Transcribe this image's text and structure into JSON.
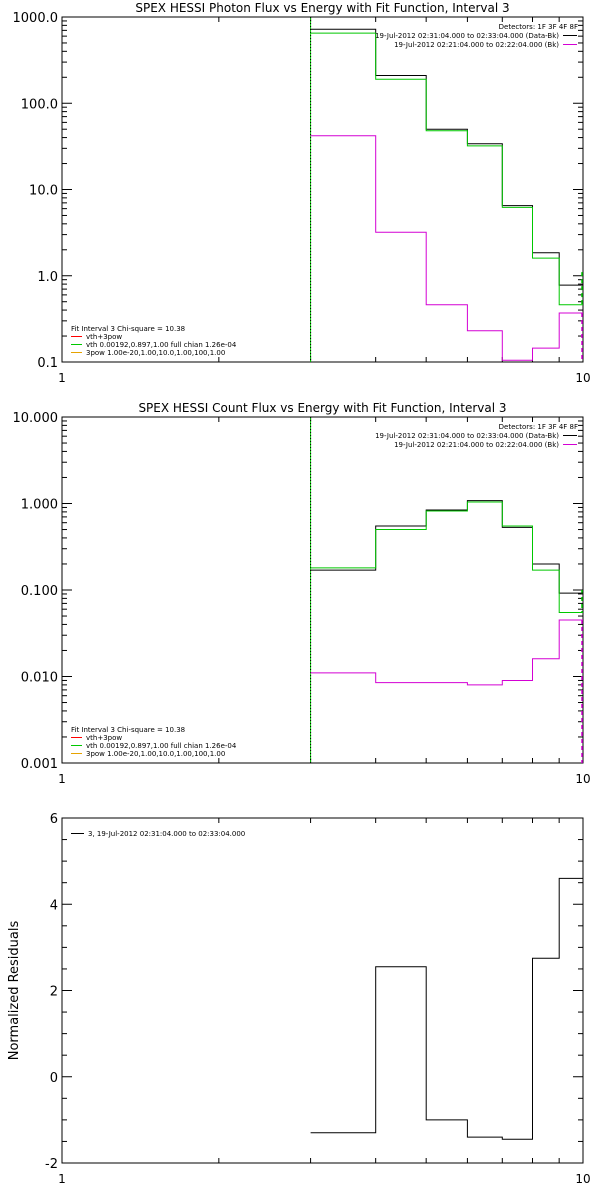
{
  "chart_data": [
    {
      "type": "line",
      "title": "SPEX HESSI Photon Flux vs Energy with Fit Function, Interval 3",
      "xlabel": "",
      "ylabel": "",
      "xscale": "log",
      "yscale": "log",
      "xlim": [
        1,
        10
      ],
      "ylim": [
        0.1,
        1000
      ],
      "xticks": [
        {
          "v": 1,
          "label": "1"
        },
        {
          "v": 10,
          "label": "10"
        }
      ],
      "yticks": [
        {
          "v": 0.1,
          "label": "0.1"
        },
        {
          "v": 1,
          "label": "1.0"
        },
        {
          "v": 10,
          "label": "10.0"
        },
        {
          "v": 100,
          "label": "100.0"
        },
        {
          "v": 1000,
          "label": "1000.0"
        }
      ],
      "vline": {
        "x": 3,
        "color": "#00c800",
        "dashed_color": "#000000"
      },
      "legend_top": {
        "header": "Detectors: 1F 3F 4F 8F",
        "entries": [
          {
            "label": "19-Jul-2012 02:31:04.000 to 02:33:04.000 (Data-Bk)",
            "color": "#000000"
          },
          {
            "label": "19-Jul-2012 02:21:04.000 to 02:22:04.000 (Bk)",
            "color": "#d400d4"
          }
        ]
      },
      "legend_bottom": {
        "header": "Fit Interval 3   Chi-square = 10.38",
        "entries": [
          {
            "label": "vth+3pow",
            "color": "#ff0000"
          },
          {
            "label": "vth 0.00192,0.897,1.00  full chian 1.26e-04",
            "color": "#00c800"
          },
          {
            "label": "3pow 1.00e-20,1.00,10.0,1.00,100,1.00",
            "color": "#e6a300"
          }
        ]
      },
      "series": [
        {
          "name": "19-Jul-2012 02:31:04.000 to 02:33:04.000 (Data-Bk)",
          "color": "#000000",
          "edges": [
            3,
            4,
            5,
            6,
            7,
            8,
            9,
            10
          ],
          "values": [
            720,
            210,
            50,
            34,
            6.5,
            1.85,
            0.78
          ]
        },
        {
          "name": "vth 0.00192,0.897,1.00  full chian 1.26e-04",
          "color": "#00c800",
          "edges": [
            3,
            4,
            5,
            6,
            7,
            8,
            9,
            10
          ],
          "values": [
            650,
            190,
            48,
            32,
            6.2,
            1.6,
            0.46
          ]
        },
        {
          "name": "19-Jul-2012 02:21:04.000 to 02:22:04.000 (Bk)",
          "color": "#d400d4",
          "edges": [
            3,
            4,
            5,
            6,
            7,
            8,
            9,
            10
          ],
          "values": [
            42,
            3.2,
            0.46,
            0.23,
            0.105,
            0.145,
            0.37
          ]
        }
      ],
      "right_edge_bars": [
        {
          "from": 0.46,
          "to": 1.1,
          "color": "#00c800"
        },
        {
          "from": 0.1,
          "to": 0.37,
          "color": "#d400d4"
        }
      ]
    },
    {
      "type": "line",
      "title": "SPEX HESSI Count Flux vs Energy with Fit Function, Interval 3",
      "xlabel": "",
      "ylabel": "",
      "xscale": "log",
      "yscale": "log",
      "xlim": [
        1,
        10
      ],
      "ylim": [
        0.001,
        10
      ],
      "xticks": [
        {
          "v": 1,
          "label": "1"
        },
        {
          "v": 10,
          "label": "10"
        }
      ],
      "yticks": [
        {
          "v": 0.001,
          "label": "0.001"
        },
        {
          "v": 0.01,
          "label": "0.010"
        },
        {
          "v": 0.1,
          "label": "0.100"
        },
        {
          "v": 1,
          "label": "1.000"
        },
        {
          "v": 10,
          "label": "10.000"
        }
      ],
      "vline": {
        "x": 3,
        "color": "#00c800",
        "dashed_color": "#000000"
      },
      "legend_top": {
        "header": "Detectors: 1F 3F 4F 8F",
        "entries": [
          {
            "label": "19-Jul-2012 02:31:04.000 to 02:33:04.000 (Data-Bk)",
            "color": "#000000"
          },
          {
            "label": "19-Jul-2012 02:21:04.000 to 02:22:04.000 (Bk)",
            "color": "#d400d4"
          }
        ]
      },
      "legend_bottom": {
        "header": "Fit Interval 3   Chi-square = 10.38",
        "entries": [
          {
            "label": "vth+3pow",
            "color": "#ff0000"
          },
          {
            "label": "vth 0.00192,0.897,1.00  full chian 1.26e-04",
            "color": "#00c800"
          },
          {
            "label": "3pow 1.00e-20,1.00,10.0,1.00,100,1.00",
            "color": "#e6a300"
          }
        ]
      },
      "series": [
        {
          "name": "19-Jul-2012 02:31:04.000 to 02:33:04.000 (Data-Bk)",
          "color": "#000000",
          "edges": [
            3,
            4,
            5,
            6,
            7,
            8,
            9,
            10
          ],
          "values": [
            0.17,
            0.55,
            0.84,
            1.08,
            0.53,
            0.2,
            0.092
          ]
        },
        {
          "name": "vth 0.00192,0.897,1.00  full chian 1.26e-04",
          "color": "#00c800",
          "edges": [
            3,
            4,
            5,
            6,
            7,
            8,
            9,
            10
          ],
          "values": [
            0.18,
            0.5,
            0.82,
            1.04,
            0.55,
            0.17,
            0.055
          ]
        },
        {
          "name": "19-Jul-2012 02:21:04.000 to 02:22:04.000 (Bk)",
          "color": "#d400d4",
          "edges": [
            3,
            4,
            5,
            6,
            7,
            8,
            9,
            10
          ],
          "values": [
            0.011,
            0.0085,
            0.0085,
            0.008,
            0.009,
            0.016,
            0.045
          ]
        }
      ],
      "right_edge_bars": [
        {
          "from": 0.001,
          "to": 0.045,
          "color": "#d400d4"
        },
        {
          "from": 0.055,
          "to": 0.1,
          "color": "#00c800"
        }
      ]
    },
    {
      "type": "line",
      "title": "",
      "xlabel": "",
      "ylabel": "Normalized Residuals",
      "xscale": "log",
      "yscale": "linear",
      "xlim": [
        1,
        10
      ],
      "ylim": [
        -2,
        6
      ],
      "xticks": [
        {
          "v": 1,
          "label": "1"
        },
        {
          "v": 10,
          "label": "10"
        }
      ],
      "yticks": [
        {
          "v": -2,
          "label": "-2"
        },
        {
          "v": 0,
          "label": "0"
        },
        {
          "v": 2,
          "label": "2"
        },
        {
          "v": 4,
          "label": "4"
        },
        {
          "v": 6,
          "label": "6"
        }
      ],
      "legend_top_left": {
        "entries": [
          {
            "label": "3, 19-Jul-2012 02:31:04.000 to 02:33:04.000",
            "color": "#000000"
          }
        ]
      },
      "series": [
        {
          "name": "3, 19-Jul-2012 02:31:04.000 to 02:33:04.000",
          "color": "#000000",
          "edges": [
            3,
            4,
            5,
            6,
            7,
            8,
            9,
            10
          ],
          "values": [
            -1.3,
            2.55,
            -1.0,
            -1.4,
            -1.45,
            2.75,
            4.6
          ]
        }
      ]
    }
  ]
}
